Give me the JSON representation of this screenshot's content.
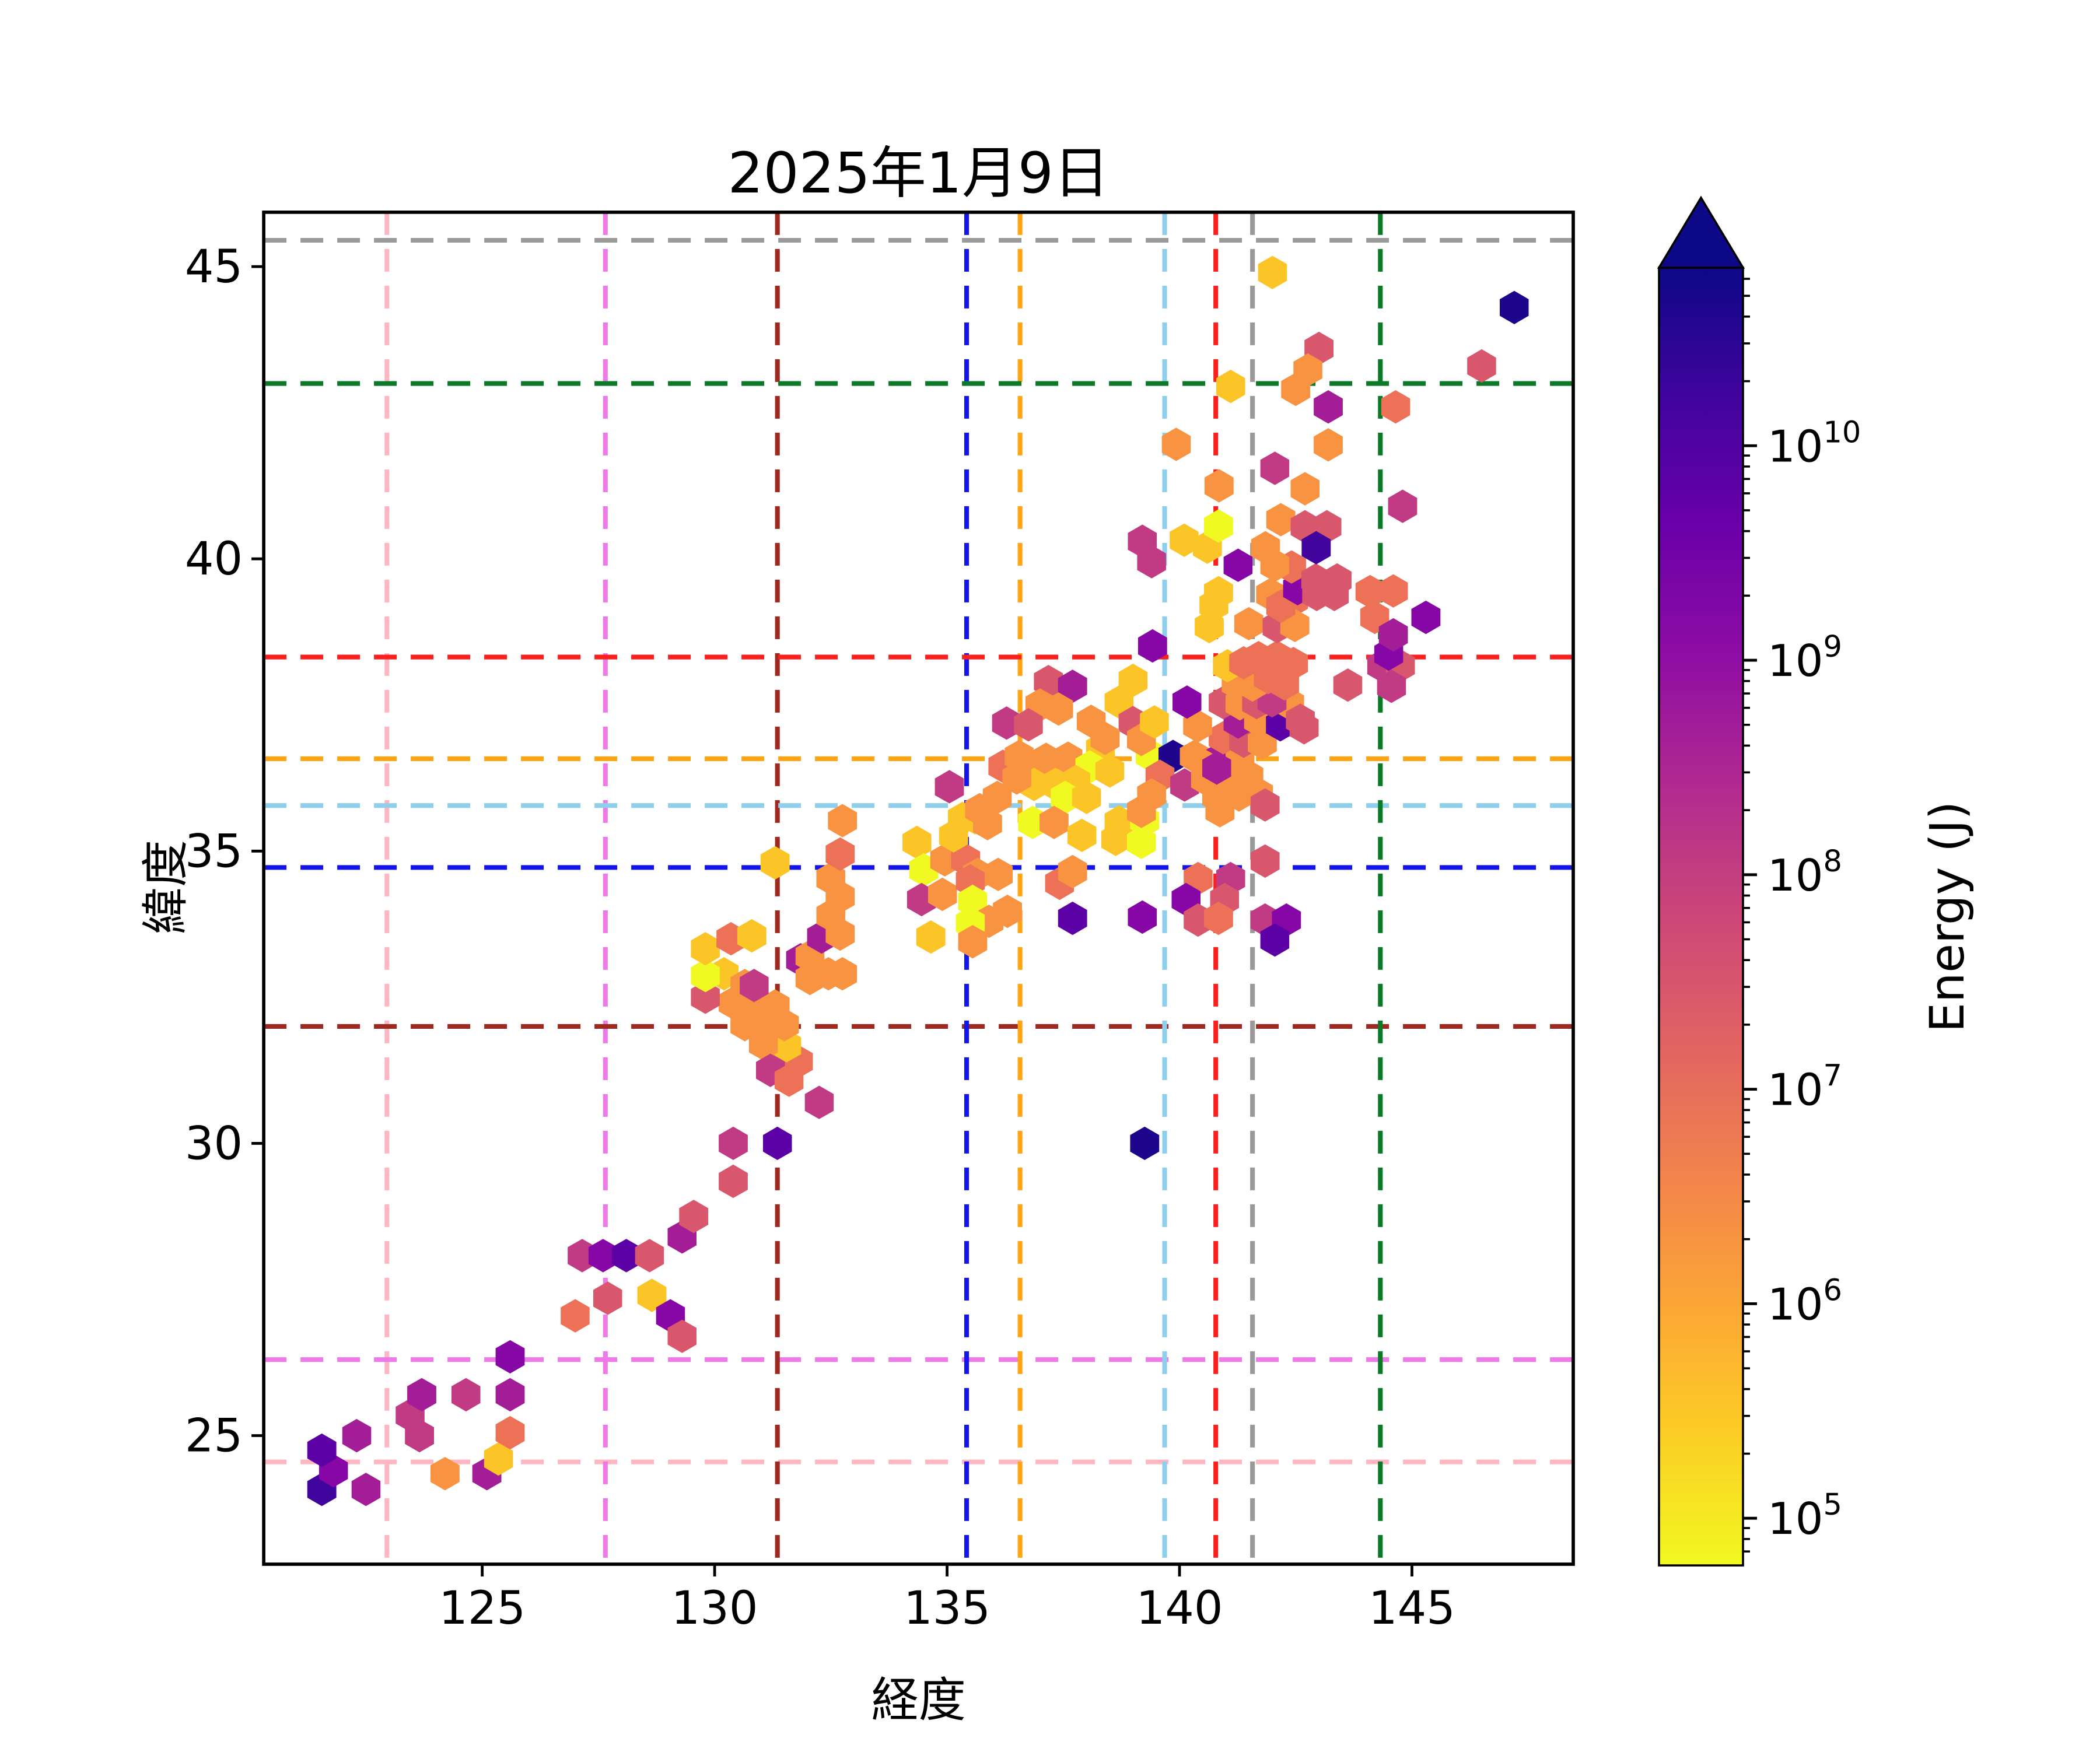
{
  "chart_data": {
    "type": "hexbin",
    "title": "2025年1月9日",
    "xlabel": "経度",
    "ylabel": "緯度",
    "xlim": [
      120.3,
      148.47
    ],
    "ylim": [
      22.8,
      45.93
    ],
    "x_ticks": [
      125,
      130,
      135,
      140,
      145
    ],
    "y_ticks": [
      25,
      30,
      35,
      40,
      45
    ],
    "grid": false,
    "colorbar": {
      "label": "Energy (J)",
      "scale": "log",
      "extend_max": true,
      "vmin_exp": 4.78,
      "vmax_exp": 10.83,
      "tick_exponents": [
        10,
        9,
        8,
        7,
        6,
        5
      ],
      "gradient_top_to_bottom": [
        {
          "o": 0,
          "c": "#0D0887"
        },
        {
          "o": 10,
          "c": "#41049D"
        },
        {
          "o": 20,
          "c": "#6A00A8"
        },
        {
          "o": 30,
          "c": "#8F0DA4"
        },
        {
          "o": 40,
          "c": "#B12A90"
        },
        {
          "o": 50,
          "c": "#CC4778"
        },
        {
          "o": 60,
          "c": "#E16462"
        },
        {
          "o": 70,
          "c": "#F2844B"
        },
        {
          "o": 80,
          "c": "#FCA636"
        },
        {
          "o": 90,
          "c": "#FCCE25"
        },
        {
          "o": 100,
          "c": "#F0F921"
        }
      ]
    },
    "crosshairs": [
      {
        "name": "pink",
        "color": "#FFB6C1",
        "lon": 122.95,
        "lat": 24.55
      },
      {
        "name": "violet",
        "color": "#EE7AE9",
        "lon": 127.65,
        "lat": 26.3
      },
      {
        "name": "darkred",
        "color": "#9C2A21",
        "lon": 131.35,
        "lat": 32.0
      },
      {
        "name": "blue",
        "color": "#1414EC",
        "lon": 135.42,
        "lat": 34.72
      },
      {
        "name": "orange",
        "color": "#FFA413",
        "lon": 136.57,
        "lat": 36.58
      },
      {
        "name": "skyblue",
        "color": "#8ECFEC",
        "lon": 139.68,
        "lat": 35.78
      },
      {
        "name": "red",
        "color": "#F9201E",
        "lon": 140.78,
        "lat": 38.32
      },
      {
        "name": "gray",
        "color": "#9A9A9A",
        "lon": 141.57,
        "lat": 45.45
      },
      {
        "name": "green",
        "color": "#0B7A28",
        "lon": 144.32,
        "lat": 43.0
      }
    ],
    "palette": [
      "#F0F921",
      "#FCC527",
      "#F89441",
      "#EC7156",
      "#D8576C",
      "#C13A84",
      "#A21D96",
      "#8606A6",
      "#5C01A6",
      "#41049D",
      "#1D068B"
    ],
    "palette_names": [
      "yellow ~1e5 J",
      "gold ~1e6 J",
      "orange ~5e6 J",
      "coral ~2e7 J",
      "pink-red ~6e7 J",
      "magenta ~1.5e8 J",
      "purple-magenta ~6e8 J",
      "purple ~1.5e9 J",
      "dark-purple ~4e9 J",
      "indigo ~1e10 J",
      "navy >3e10 J"
    ],
    "points": [
      [
        121.55,
        24.08,
        9
      ],
      [
        122.5,
        24.08,
        6
      ],
      [
        121.8,
        24.4,
        7
      ],
      [
        121.55,
        24.75,
        8
      ],
      [
        122.3,
        25.0,
        6
      ],
      [
        123.65,
        25.0,
        5
      ],
      [
        123.45,
        25.35,
        5
      ],
      [
        123.7,
        25.7,
        6
      ],
      [
        124.65,
        25.7,
        5
      ],
      [
        125.6,
        25.7,
        6
      ],
      [
        125.6,
        26.35,
        7
      ],
      [
        124.2,
        24.35,
        2
      ],
      [
        125.1,
        24.35,
        6
      ],
      [
        125.35,
        24.6,
        1
      ],
      [
        125.6,
        25.05,
        3
      ],
      [
        127.0,
        27.05,
        3
      ],
      [
        127.15,
        28.08,
        5
      ],
      [
        127.6,
        28.08,
        7
      ],
      [
        128.1,
        28.08,
        8
      ],
      [
        128.6,
        28.08,
        4
      ],
      [
        127.7,
        27.35,
        4
      ],
      [
        128.65,
        27.4,
        1
      ],
      [
        129.05,
        27.05,
        7
      ],
      [
        129.3,
        26.7,
        4
      ],
      [
        129.3,
        28.4,
        6
      ],
      [
        129.55,
        28.75,
        4
      ],
      [
        130.4,
        29.35,
        4
      ],
      [
        130.4,
        30.0,
        5
      ],
      [
        131.35,
        30.0,
        8
      ],
      [
        139.25,
        30.0,
        10
      ],
      [
        132.25,
        30.7,
        5
      ],
      [
        131.3,
        31.4,
        4
      ],
      [
        131.8,
        31.4,
        3
      ],
      [
        131.55,
        31.67,
        1
      ],
      [
        131.05,
        31.7,
        2
      ],
      [
        131.2,
        31.25,
        5
      ],
      [
        131.6,
        31.08,
        3
      ],
      [
        130.65,
        32.03,
        2
      ],
      [
        131.05,
        32.03,
        2
      ],
      [
        131.5,
        32.03,
        2
      ],
      [
        130.4,
        32.4,
        2
      ],
      [
        130.85,
        32.35,
        2
      ],
      [
        131.3,
        32.35,
        2
      ],
      [
        129.8,
        32.5,
        4
      ],
      [
        130.2,
        32.9,
        1
      ],
      [
        130.65,
        32.7,
        2
      ],
      [
        130.85,
        32.7,
        5
      ],
      [
        129.8,
        32.87,
        0
      ],
      [
        129.8,
        33.33,
        1
      ],
      [
        130.35,
        33.5,
        3
      ],
      [
        130.8,
        33.55,
        1
      ],
      [
        131.85,
        33.14,
        6
      ],
      [
        132.05,
        32.82,
        2
      ],
      [
        132.05,
        33.2,
        2
      ],
      [
        132.45,
        32.9,
        2
      ],
      [
        132.75,
        32.9,
        2
      ],
      [
        132.3,
        33.53,
        6
      ],
      [
        132.7,
        33.58,
        2
      ],
      [
        132.5,
        33.9,
        2
      ],
      [
        132.7,
        34.22,
        2
      ],
      [
        132.5,
        34.53,
        2
      ],
      [
        132.7,
        34.95,
        3
      ],
      [
        131.3,
        34.8,
        1
      ],
      [
        132.75,
        35.52,
        2
      ],
      [
        134.35,
        35.15,
        1
      ],
      [
        134.5,
        34.68,
        0
      ],
      [
        134.95,
        34.85,
        2
      ],
      [
        135.4,
        34.85,
        3
      ],
      [
        135.65,
        34.6,
        2
      ],
      [
        136.1,
        34.6,
        2
      ],
      [
        134.45,
        34.17,
        5
      ],
      [
        134.9,
        34.26,
        2
      ],
      [
        135.5,
        34.49,
        3
      ],
      [
        135.55,
        34.14,
        0
      ],
      [
        135.9,
        33.8,
        2
      ],
      [
        135.5,
        33.77,
        0
      ],
      [
        135.55,
        33.45,
        2
      ],
      [
        134.65,
        33.53,
        1
      ],
      [
        136.3,
        33.97,
        2
      ],
      [
        137.42,
        34.45,
        3
      ],
      [
        137.7,
        34.65,
        2
      ],
      [
        137.7,
        33.85,
        8
      ],
      [
        139.2,
        33.87,
        7
      ],
      [
        135.05,
        36.1,
        5
      ],
      [
        136.2,
        36.45,
        3
      ],
      [
        136.55,
        36.62,
        2
      ],
      [
        136.65,
        36.54,
        2
      ],
      [
        137.13,
        36.57,
        2
      ],
      [
        137.6,
        36.59,
        2
      ],
      [
        138.3,
        36.75,
        1
      ],
      [
        138.07,
        36.44,
        0
      ],
      [
        136.87,
        36.14,
        1
      ],
      [
        137.33,
        36.14,
        1
      ],
      [
        137.77,
        36.19,
        1
      ],
      [
        137.54,
        35.92,
        0
      ],
      [
        138.0,
        35.92,
        1
      ],
      [
        136.08,
        35.92,
        2
      ],
      [
        135.33,
        35.56,
        1
      ],
      [
        135.6,
        35.57,
        1
      ],
      [
        135.87,
        35.47,
        2
      ],
      [
        136.84,
        35.49,
        0
      ],
      [
        137.3,
        35.49,
        2
      ],
      [
        137.9,
        35.27,
        1
      ],
      [
        138.7,
        35.5,
        1
      ],
      [
        135.14,
        35.26,
        1
      ],
      [
        135.7,
        35.71,
        2
      ],
      [
        136.5,
        36.25,
        2
      ],
      [
        138.5,
        36.37,
        1
      ],
      [
        138.63,
        35.2,
        1
      ],
      [
        139.0,
        37.92,
        1
      ],
      [
        138.7,
        37.55,
        1
      ],
      [
        139.0,
        37.2,
        4
      ],
      [
        138.1,
        37.22,
        2
      ],
      [
        138.4,
        36.93,
        2
      ],
      [
        137.18,
        37.9,
        4
      ],
      [
        137.7,
        37.82,
        6
      ],
      [
        137.0,
        37.5,
        2
      ],
      [
        137.4,
        37.43,
        2
      ],
      [
        136.28,
        37.19,
        5
      ],
      [
        136.75,
        37.16,
        4
      ],
      [
        139.37,
        36.64,
        0
      ],
      [
        139.86,
        36.62,
        10
      ],
      [
        140.32,
        36.62,
        2
      ],
      [
        140.84,
        36.57,
        6
      ],
      [
        141.3,
        36.57,
        2
      ],
      [
        139.58,
        36.28,
        3
      ],
      [
        140.11,
        36.13,
        5
      ],
      [
        140.56,
        36.23,
        2
      ],
      [
        141.03,
        36.25,
        2
      ],
      [
        141.49,
        36.28,
        2
      ],
      [
        141.7,
        35.98,
        2
      ],
      [
        141.28,
        35.96,
        2
      ],
      [
        140.8,
        35.93,
        2
      ],
      [
        139.4,
        35.96,
        2
      ],
      [
        139.18,
        36.91,
        2
      ],
      [
        139.25,
        35.52,
        0
      ],
      [
        139.18,
        35.15,
        0
      ],
      [
        140.87,
        35.69,
        2
      ],
      [
        141.84,
        35.79,
        4
      ],
      [
        141.84,
        34.83,
        4
      ],
      [
        139.18,
        35.68,
        2
      ],
      [
        140.56,
        36.45,
        2
      ],
      [
        140.8,
        36.42,
        6
      ],
      [
        140.94,
        36.94,
        3
      ],
      [
        141.38,
        36.88,
        4
      ],
      [
        141.78,
        36.85,
        2
      ],
      [
        140.4,
        34.53,
        3
      ],
      [
        141.1,
        34.53,
        5
      ],
      [
        140.14,
        34.17,
        7
      ],
      [
        140.97,
        34.17,
        4
      ],
      [
        140.4,
        33.82,
        4
      ],
      [
        140.84,
        33.85,
        3
      ],
      [
        141.84,
        33.82,
        5
      ],
      [
        142.3,
        33.82,
        7
      ],
      [
        142.05,
        33.48,
        8
      ],
      [
        139.46,
        37.21,
        1
      ],
      [
        140.39,
        37.14,
        2
      ],
      [
        140.16,
        37.55,
        7
      ],
      [
        141.26,
        37.21,
        6
      ],
      [
        141.7,
        37.24,
        2
      ],
      [
        142.17,
        37.16,
        8
      ],
      [
        142.37,
        37.52,
        2
      ],
      [
        142.68,
        37.11,
        4
      ],
      [
        142.6,
        37.24,
        4
      ],
      [
        140.94,
        37.54,
        4
      ],
      [
        141.3,
        37.52,
        2
      ],
      [
        141.66,
        37.54,
        4
      ],
      [
        141.99,
        37.57,
        5
      ],
      [
        141.22,
        37.87,
        2
      ],
      [
        141.57,
        37.84,
        2
      ],
      [
        141.91,
        37.97,
        3
      ],
      [
        142.26,
        37.86,
        3
      ],
      [
        143.62,
        37.84,
        4
      ],
      [
        141.03,
        38.17,
        1
      ],
      [
        141.38,
        38.22,
        3
      ],
      [
        141.7,
        38.31,
        3
      ],
      [
        142.1,
        38.32,
        3
      ],
      [
        142.45,
        38.21,
        3
      ],
      [
        144.35,
        38.17,
        5
      ],
      [
        144.75,
        38.17,
        4
      ],
      [
        144.56,
        37.82,
        5
      ],
      [
        144.5,
        38.37,
        7
      ],
      [
        139.42,
        38.51,
        7
      ],
      [
        140.74,
        39.21,
        1
      ],
      [
        140.64,
        38.84,
        1
      ],
      [
        140.84,
        39.42,
        1
      ],
      [
        141.49,
        38.89,
        2
      ],
      [
        141.96,
        39.39,
        2
      ],
      [
        142.1,
        38.84,
        4
      ],
      [
        142.45,
        39.29,
        3
      ],
      [
        142.48,
        38.86,
        2
      ],
      [
        142.18,
        39.19,
        3
      ],
      [
        142.54,
        39.49,
        7
      ],
      [
        142.95,
        39.39,
        4
      ],
      [
        143.33,
        39.39,
        4
      ],
      [
        142.41,
        39.86,
        3
      ],
      [
        142.05,
        39.89,
        2
      ],
      [
        141.85,
        40.19,
        2
      ],
      [
        141.26,
        39.89,
        7
      ],
      [
        142.93,
        39.64,
        4
      ],
      [
        143.39,
        39.64,
        4
      ],
      [
        144.1,
        39.44,
        3
      ],
      [
        144.6,
        39.45,
        3
      ],
      [
        144.2,
        39.0,
        3
      ],
      [
        145.3,
        39.0,
        7
      ],
      [
        144.6,
        38.7,
        6
      ],
      [
        139.2,
        40.3,
        5
      ],
      [
        139.4,
        39.95,
        5
      ],
      [
        140.1,
        40.32,
        1
      ],
      [
        140.6,
        40.2,
        1
      ],
      [
        140.84,
        40.56,
        0
      ],
      [
        140.85,
        41.25,
        2
      ],
      [
        142.05,
        41.55,
        5
      ],
      [
        142.7,
        41.2,
        2
      ],
      [
        142.18,
        40.67,
        2
      ],
      [
        142.7,
        40.55,
        4
      ],
      [
        143.17,
        40.55,
        4
      ],
      [
        142.94,
        40.19,
        9
      ],
      [
        144.8,
        40.9,
        5
      ],
      [
        139.93,
        41.96,
        2
      ],
      [
        143.2,
        41.95,
        2
      ],
      [
        141.1,
        42.95,
        1
      ],
      [
        142.0,
        44.9,
        1
      ],
      [
        147.2,
        44.3,
        10
      ],
      [
        143.0,
        43.6,
        4
      ],
      [
        142.76,
        43.23,
        2
      ],
      [
        142.5,
        42.9,
        2
      ],
      [
        146.5,
        43.3,
        4
      ],
      [
        143.2,
        42.6,
        6
      ],
      [
        144.65,
        42.6,
        3
      ]
    ]
  }
}
